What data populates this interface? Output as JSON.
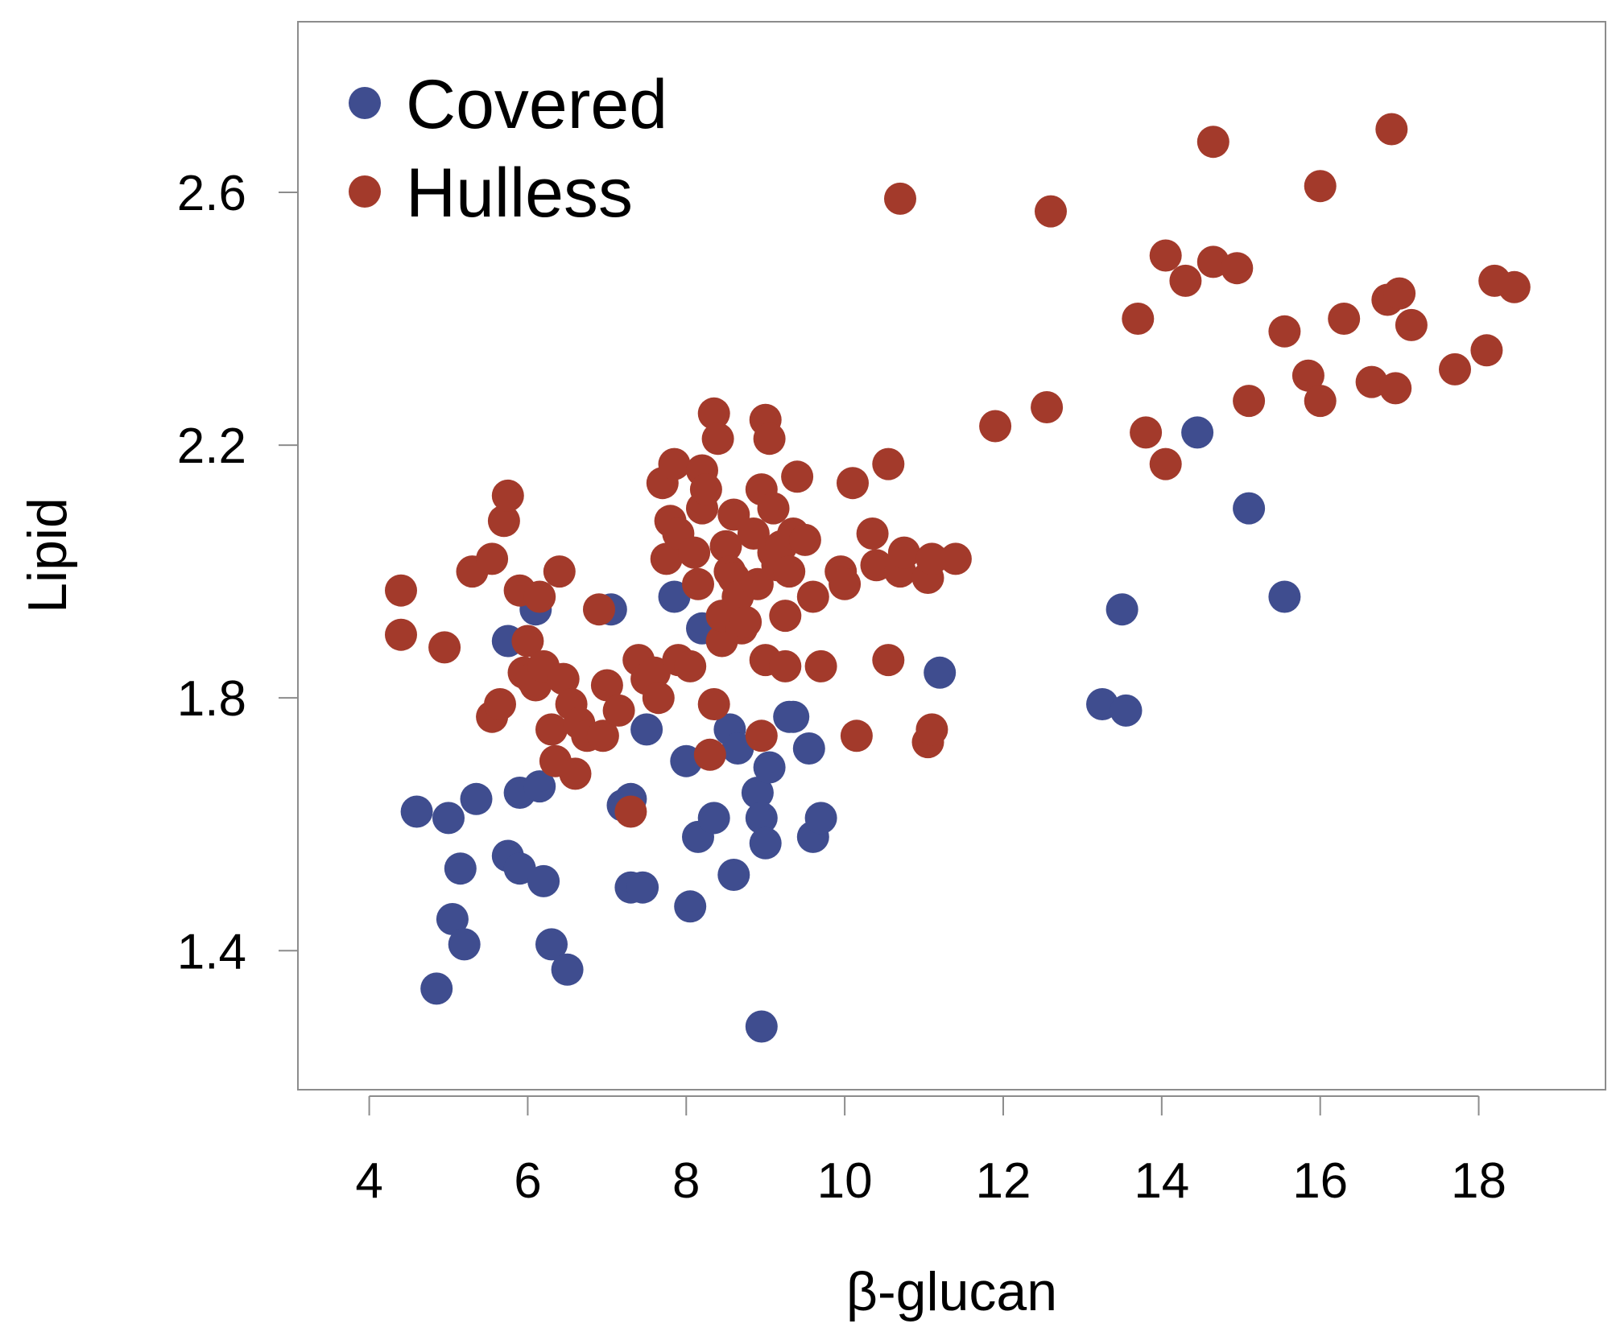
{
  "chart_data": {
    "type": "scatter",
    "title": "",
    "xlabel": "β-glucan",
    "ylabel": "Lipid",
    "xlim": [
      3.1,
      19.6
    ],
    "ylim": [
      1.18,
      2.87
    ],
    "xticks": [
      4,
      6,
      8,
      10,
      12,
      14,
      16,
      18
    ],
    "yticks": [
      1.4,
      1.8,
      2.2,
      2.6
    ],
    "xtick_labels": [
      "4",
      "6",
      "8",
      "10",
      "12",
      "14",
      "16",
      "18"
    ],
    "ytick_labels": [
      "1.4",
      "1.8",
      "2.2",
      "2.6"
    ],
    "grid": false,
    "legend_position": "top-left",
    "series": [
      {
        "name": "Covered",
        "color": "#3f4d8f",
        "points": [
          [
            4.6,
            1.62
          ],
          [
            5.0,
            1.61
          ],
          [
            5.35,
            1.64
          ],
          [
            4.85,
            1.34
          ],
          [
            5.05,
            1.45
          ],
          [
            5.2,
            1.41
          ],
          [
            5.15,
            1.53
          ],
          [
            5.75,
            1.55
          ],
          [
            5.9,
            1.53
          ],
          [
            5.9,
            1.65
          ],
          [
            6.2,
            1.51
          ],
          [
            6.15,
            1.66
          ],
          [
            6.3,
            1.41
          ],
          [
            6.5,
            1.37
          ],
          [
            5.75,
            1.89
          ],
          [
            6.1,
            1.94
          ],
          [
            7.05,
            1.94
          ],
          [
            7.2,
            1.63
          ],
          [
            7.3,
            1.64
          ],
          [
            7.3,
            1.5
          ],
          [
            7.45,
            1.5
          ],
          [
            7.5,
            1.75
          ],
          [
            7.85,
            1.96
          ],
          [
            8.0,
            1.7
          ],
          [
            8.05,
            1.47
          ],
          [
            8.15,
            1.58
          ],
          [
            8.2,
            1.91
          ],
          [
            8.35,
            1.61
          ],
          [
            8.55,
            1.75
          ],
          [
            8.6,
            1.52
          ],
          [
            8.65,
            1.72
          ],
          [
            8.9,
            1.65
          ],
          [
            8.95,
            1.61
          ],
          [
            8.95,
            1.28
          ],
          [
            9.0,
            1.57
          ],
          [
            9.05,
            1.69
          ],
          [
            9.3,
            1.77
          ],
          [
            9.35,
            1.77
          ],
          [
            9.55,
            1.72
          ],
          [
            9.6,
            1.58
          ],
          [
            9.7,
            1.61
          ],
          [
            11.2,
            1.84
          ],
          [
            13.25,
            1.79
          ],
          [
            13.5,
            1.94
          ],
          [
            13.55,
            1.78
          ],
          [
            14.45,
            2.22
          ],
          [
            15.1,
            2.1
          ],
          [
            15.55,
            1.96
          ]
        ]
      },
      {
        "name": "Hulless",
        "color": "#a33a2b",
        "points": [
          [
            4.4,
            1.97
          ],
          [
            4.4,
            1.9
          ],
          [
            4.95,
            1.88
          ],
          [
            5.3,
            2.0
          ],
          [
            5.55,
            2.02
          ],
          [
            5.55,
            1.77
          ],
          [
            5.65,
            1.79
          ],
          [
            5.7,
            2.08
          ],
          [
            5.75,
            2.12
          ],
          [
            5.9,
            1.97
          ],
          [
            5.95,
            1.84
          ],
          [
            6.0,
            1.89
          ],
          [
            6.05,
            1.83
          ],
          [
            6.1,
            1.82
          ],
          [
            6.15,
            1.96
          ],
          [
            6.2,
            1.85
          ],
          [
            6.3,
            1.75
          ],
          [
            6.35,
            1.7
          ],
          [
            6.4,
            2.0
          ],
          [
            6.45,
            1.83
          ],
          [
            6.55,
            1.79
          ],
          [
            6.6,
            1.68
          ],
          [
            6.65,
            1.76
          ],
          [
            6.75,
            1.74
          ],
          [
            6.9,
            1.94
          ],
          [
            6.95,
            1.74
          ],
          [
            7.0,
            1.82
          ],
          [
            7.15,
            1.78
          ],
          [
            7.3,
            1.62
          ],
          [
            7.4,
            1.86
          ],
          [
            7.5,
            1.83
          ],
          [
            7.6,
            1.84
          ],
          [
            7.65,
            1.8
          ],
          [
            7.7,
            2.14
          ],
          [
            7.75,
            2.02
          ],
          [
            7.8,
            2.08
          ],
          [
            7.85,
            2.17
          ],
          [
            7.9,
            2.06
          ],
          [
            7.9,
            1.86
          ],
          [
            8.05,
            1.85
          ],
          [
            8.1,
            2.03
          ],
          [
            8.15,
            1.98
          ],
          [
            8.2,
            2.1
          ],
          [
            8.2,
            2.16
          ],
          [
            8.25,
            2.13
          ],
          [
            8.3,
            1.71
          ],
          [
            8.35,
            2.25
          ],
          [
            8.35,
            1.79
          ],
          [
            8.4,
            2.21
          ],
          [
            8.45,
            1.89
          ],
          [
            8.45,
            1.93
          ],
          [
            8.5,
            2.04
          ],
          [
            8.55,
            2.0
          ],
          [
            8.6,
            1.99
          ],
          [
            8.6,
            2.09
          ],
          [
            8.65,
            1.96
          ],
          [
            8.7,
            1.91
          ],
          [
            8.75,
            1.92
          ],
          [
            8.85,
            2.06
          ],
          [
            8.9,
            1.98
          ],
          [
            8.95,
            2.13
          ],
          [
            8.95,
            1.74
          ],
          [
            9.0,
            2.24
          ],
          [
            9.0,
            1.86
          ],
          [
            9.05,
            2.21
          ],
          [
            9.1,
            2.1
          ],
          [
            9.1,
            2.03
          ],
          [
            9.15,
            2.01
          ],
          [
            9.2,
            2.04
          ],
          [
            9.25,
            1.93
          ],
          [
            9.25,
            1.85
          ],
          [
            9.3,
            2.0
          ],
          [
            9.35,
            2.06
          ],
          [
            9.4,
            2.15
          ],
          [
            9.5,
            2.05
          ],
          [
            9.6,
            1.96
          ],
          [
            9.7,
            1.85
          ],
          [
            9.95,
            2.0
          ],
          [
            10.0,
            1.98
          ],
          [
            10.1,
            2.14
          ],
          [
            10.15,
            1.74
          ],
          [
            10.35,
            2.06
          ],
          [
            10.4,
            2.01
          ],
          [
            10.55,
            2.17
          ],
          [
            10.55,
            1.86
          ],
          [
            10.7,
            2.59
          ],
          [
            10.7,
            2.0
          ],
          [
            10.75,
            2.03
          ],
          [
            11.05,
            1.99
          ],
          [
            11.1,
            2.02
          ],
          [
            11.05,
            1.73
          ],
          [
            11.1,
            1.75
          ],
          [
            11.4,
            2.02
          ],
          [
            11.9,
            2.23
          ],
          [
            12.55,
            2.26
          ],
          [
            12.6,
            2.57
          ],
          [
            13.7,
            2.4
          ],
          [
            13.8,
            2.22
          ],
          [
            14.05,
            2.5
          ],
          [
            14.05,
            2.17
          ],
          [
            14.3,
            2.46
          ],
          [
            14.65,
            2.68
          ],
          [
            14.65,
            2.49
          ],
          [
            14.95,
            2.48
          ],
          [
            15.1,
            2.27
          ],
          [
            15.55,
            2.38
          ],
          [
            15.85,
            2.31
          ],
          [
            16.0,
            2.27
          ],
          [
            16.0,
            2.61
          ],
          [
            16.3,
            2.4
          ],
          [
            16.65,
            2.3
          ],
          [
            16.85,
            2.43
          ],
          [
            16.9,
            2.7
          ],
          [
            16.95,
            2.29
          ],
          [
            17.0,
            2.44
          ],
          [
            17.15,
            2.39
          ],
          [
            17.7,
            2.32
          ],
          [
            18.1,
            2.35
          ],
          [
            18.2,
            2.46
          ],
          [
            18.45,
            2.45
          ]
        ]
      }
    ]
  }
}
